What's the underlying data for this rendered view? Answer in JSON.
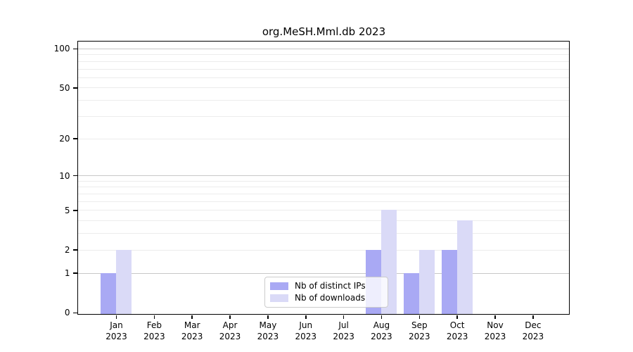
{
  "chart_data": {
    "type": "bar",
    "title": "org.MeSH.Mml.db 2023",
    "x_categories": [
      "Jan",
      "Feb",
      "Mar",
      "Apr",
      "May",
      "Jun",
      "Jul",
      "Aug",
      "Sep",
      "Oct",
      "Nov",
      "Dec"
    ],
    "x_year": "2023",
    "series": [
      {
        "name": "Nb of distinct IPs",
        "color": "#a9a9f4",
        "values": [
          1,
          0,
          0,
          0,
          0,
          0,
          0,
          2,
          1,
          2,
          0,
          0
        ]
      },
      {
        "name": "Nb of downloads",
        "color": "#dadaf7",
        "values": [
          2,
          0,
          0,
          0,
          0,
          0,
          0,
          5,
          2,
          4,
          0,
          0
        ]
      }
    ],
    "y_scale": "log10(1+y)",
    "y_ticks": [
      100,
      50,
      20,
      10,
      5,
      2,
      1,
      0
    ],
    "ylim": [
      0,
      112
    ],
    "grid": {
      "major_lines": [
        1,
        10,
        100
      ],
      "minor_lines": [
        2,
        3,
        4,
        5,
        6,
        7,
        8,
        9,
        20,
        30,
        40,
        50,
        60,
        70,
        80,
        90
      ],
      "major_color": "#c8c8c8",
      "minor_color": "#ececec"
    },
    "legend_position": "lower center",
    "axis_color": "#000000",
    "background_color": "#ffffff"
  }
}
